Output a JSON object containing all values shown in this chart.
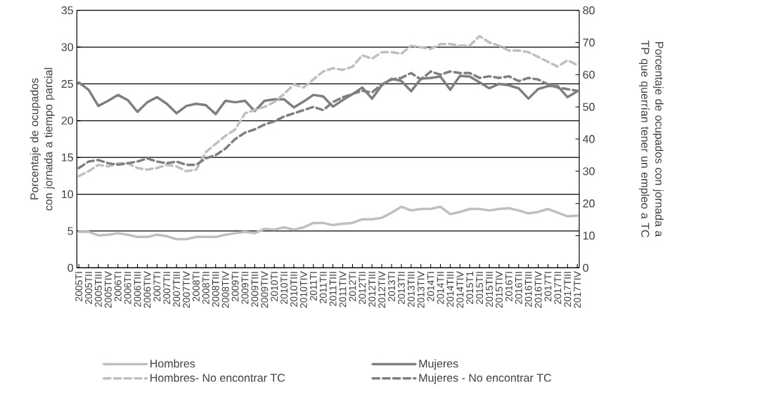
{
  "chart_data": {
    "type": "line",
    "ylabel": "Porcentaje de ocupados con jornada a tiempo parcial",
    "y2label": "Porcentaje de ocupados con jornada a TP que querrían tener un empleo a TC",
    "categories": [
      "2005TI",
      "2005TII",
      "2005TIII",
      "2005TIV",
      "2006TI",
      "2006TII",
      "2006TIII",
      "2006TIV",
      "2007TI",
      "2007TII",
      "2007TIII",
      "2007TIV",
      "2008TI",
      "2008TII",
      "2008TIII",
      "2008TIV",
      "2009TI",
      "2009TII",
      "2009TIII",
      "2009TIV",
      "2010TI",
      "2010TII",
      "2010TIII",
      "2010TIV",
      "2011TI",
      "2011TII",
      "2011TIII",
      "2011TIV",
      "2012TI",
      "2012TII",
      "2012TIII",
      "2012TIV",
      "2013TI",
      "2013TII",
      "2013TIII",
      "2013TIV",
      "2014TI",
      "2014TII",
      "2014TIII",
      "2014TIV",
      "2015T1",
      "2015TII",
      "2015TIII",
      "2015TIV",
      "2016TI",
      "2016TII",
      "2016TIII",
      "2016TIV",
      "2017TI",
      "2017TII",
      "2017TIII",
      "2017TIV"
    ],
    "ylim": [
      0,
      35
    ],
    "yticks": [
      0,
      5,
      10,
      15,
      20,
      25,
      30,
      35
    ],
    "y2lim": [
      0,
      80
    ],
    "y2ticks": [
      0,
      10,
      20,
      30,
      40,
      50,
      60,
      70,
      80
    ],
    "grid": "y",
    "legend": "bottom",
    "marker": "none",
    "series": [
      {
        "name": "Hombres",
        "color": "#bfbfbf",
        "line_style": "solid",
        "values": [
          4.9,
          4.9,
          4.4,
          4.5,
          4.7,
          4.5,
          4.2,
          4.2,
          4.5,
          4.3,
          3.9,
          3.9,
          4.2,
          4.2,
          4.2,
          4.5,
          4.7,
          4.9,
          4.7,
          5.3,
          5.2,
          5.5,
          5.2,
          5.5,
          6.1,
          6.1,
          5.8,
          6.0,
          6.1,
          6.6,
          6.6,
          6.8,
          7.5,
          8.3,
          7.8,
          8.0,
          8.0,
          8.3,
          7.3,
          7.6,
          8.0,
          8.0,
          7.8,
          8.0,
          8.1,
          7.8,
          7.4,
          7.6,
          8.0,
          7.5,
          7.0,
          7.1
        ]
      },
      {
        "name": "Mujeres",
        "color": "#7f7f7f",
        "line_style": "solid",
        "values": [
          25.2,
          24.2,
          22.0,
          22.7,
          23.5,
          22.8,
          21.2,
          22.5,
          23.2,
          22.3,
          21.0,
          22.0,
          22.3,
          22.1,
          20.9,
          22.7,
          22.5,
          22.7,
          21.3,
          22.7,
          22.9,
          22.9,
          21.8,
          22.6,
          23.5,
          23.3,
          21.9,
          22.8,
          23.6,
          24.5,
          23.0,
          24.8,
          25.7,
          25.4,
          24.0,
          25.7,
          25.8,
          26.0,
          24.2,
          26.1,
          26.0,
          25.2,
          24.4,
          25.0,
          24.8,
          24.4,
          23.0,
          24.3,
          24.7,
          24.7,
          23.2,
          24.0
        ]
      },
      {
        "name": "Hombres- No encontrar TC",
        "color": "#bfbfbf",
        "line_style": "dashed",
        "axis": "y2",
        "values": [
          28.5,
          30,
          32,
          31.5,
          32.5,
          32.5,
          31,
          30.5,
          31,
          32,
          31.5,
          30,
          30.5,
          36,
          38.5,
          41,
          43,
          48,
          49,
          50,
          51.5,
          54,
          57,
          56,
          58.5,
          61,
          62,
          61.5,
          62.5,
          66,
          65,
          67,
          67,
          66.5,
          69,
          68.5,
          68,
          69.5,
          69.5,
          69,
          69,
          72,
          70,
          69,
          67.5,
          67.5,
          67,
          65.5,
          64,
          62.5,
          64.5,
          63
        ]
      },
      {
        "name": "Mujeres - No encontrar TC",
        "color": "#7f7f7f",
        "line_style": "dashed",
        "axis": "y2",
        "values": [
          31,
          33,
          33.5,
          32.5,
          32,
          32.5,
          33,
          34,
          33,
          32.5,
          33,
          32,
          32,
          34,
          35,
          37,
          40,
          42,
          43,
          44.5,
          45.5,
          47,
          48,
          49,
          50,
          49,
          51.5,
          53,
          54,
          55,
          54.5,
          57,
          58.5,
          59,
          60.5,
          58.5,
          61,
          60,
          61,
          60.5,
          60.5,
          59,
          59.5,
          59,
          59.5,
          58,
          59,
          58.5,
          57,
          56,
          55.5,
          55
        ]
      }
    ]
  }
}
